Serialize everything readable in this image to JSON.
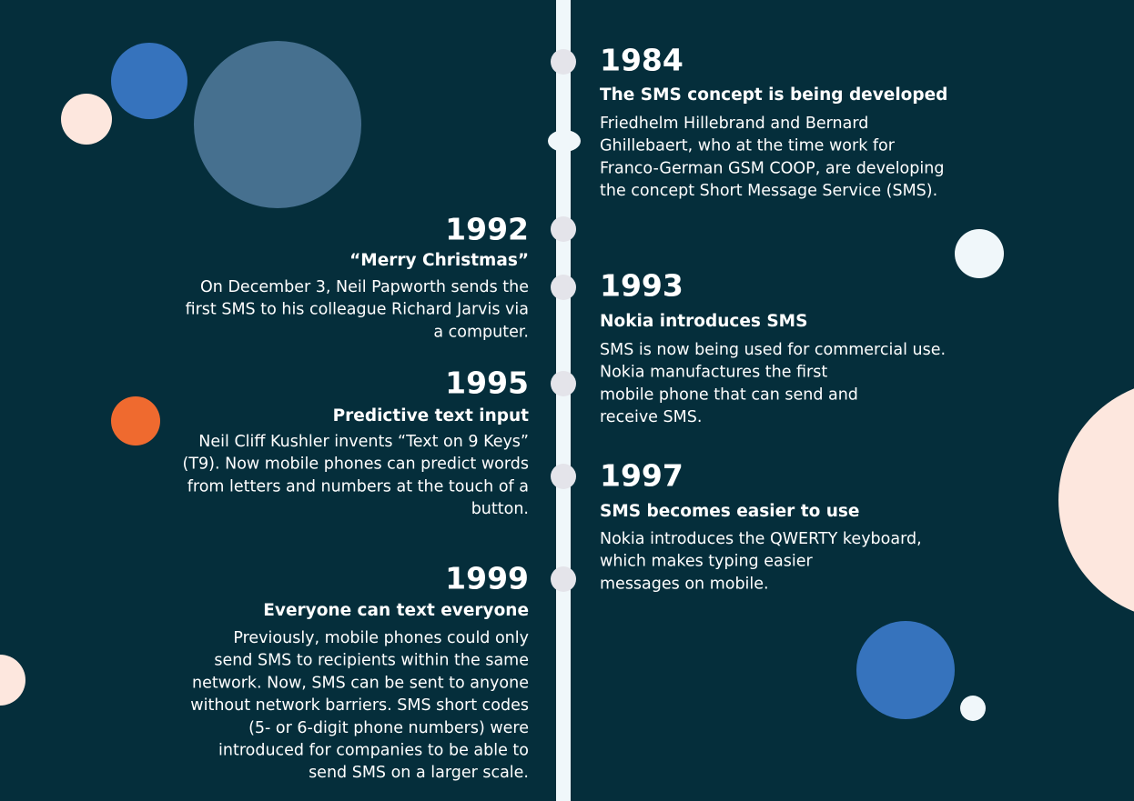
{
  "events": [
    {
      "year": "1984",
      "title": "The SMS concept is being developed",
      "lines": [
        "Friedhelm Hillebrand and Bernard",
        "Ghillebaert, who at the time work for",
        "Franco-German GSM COOP, are developing",
        "the concept Short Message Service (SMS)."
      ]
    },
    {
      "year": "1992",
      "title": "“Merry Christmas”",
      "lines": [
        "On December 3, Neil Papworth sends the",
        "first SMS to his colleague Richard Jarvis via",
        "a computer."
      ]
    },
    {
      "year": "1993",
      "title": "Nokia introduces SMS",
      "lines": [
        "SMS is now being used for commercial use.",
        "Nokia manufactures the first",
        "mobile phone that can send and",
        "receive SMS."
      ]
    },
    {
      "year": "1995",
      "title": "Predictive text input",
      "lines": [
        "Neil Cliff Kushler invents “Text on 9 Keys”",
        "(T9). Now mobile phones can predict words",
        "from letters and numbers at the touch of a",
        "button."
      ]
    },
    {
      "year": "1997",
      "title": "SMS becomes easier to use",
      "lines": [
        "Nokia introduces the QWERTY keyboard,",
        "which makes typing easier",
        "messages on mobile."
      ]
    },
    {
      "year": "1999",
      "title": "Everyone can text everyone",
      "lines": [
        "Previously, mobile phones could only",
        "send SMS to recipients within the same",
        "network. Now, SMS can be sent to anyone",
        "without network barriers. SMS short codes",
        "(5- or 6-digit phone numbers) were",
        "introduced for companies to be able to",
        "send SMS on a larger scale."
      ]
    }
  ]
}
